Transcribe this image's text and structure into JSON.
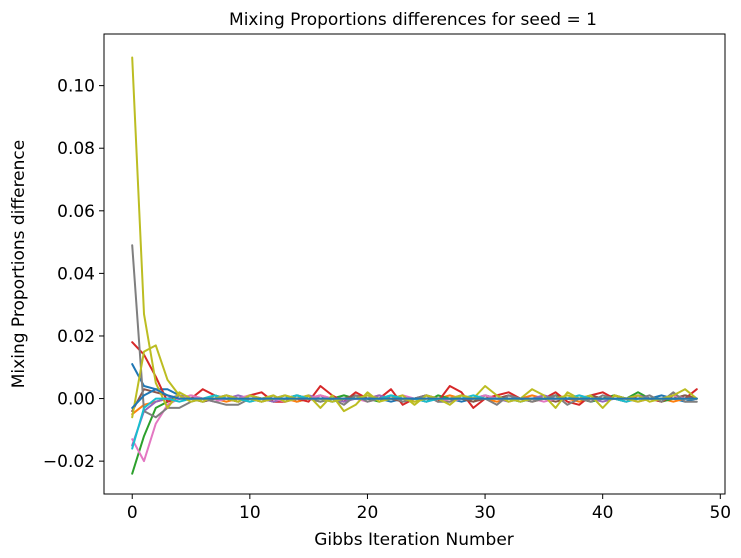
{
  "chart_data": {
    "type": "line",
    "title": "Mixing Proportions differences for seed = 1",
    "xlabel": "Gibbs Iteration Number",
    "ylabel": "Mixing Proportions difference",
    "xlim": [
      -2.4,
      50.4
    ],
    "ylim": [
      -0.0305,
      0.1165
    ],
    "xticks": [
      0,
      10,
      20,
      30,
      40,
      50
    ],
    "xtick_labels": [
      "0",
      "10",
      "20",
      "30",
      "40",
      "50"
    ],
    "yticks": [
      -0.02,
      0.0,
      0.02,
      0.04,
      0.06,
      0.08,
      0.1
    ],
    "ytick_labels": [
      "−0.02",
      "0.00",
      "0.02",
      "0.04",
      "0.06",
      "0.08",
      "0.10"
    ],
    "grid": false,
    "legend": "none",
    "x": [
      0,
      1,
      2,
      3,
      4,
      5,
      6,
      7,
      8,
      9,
      10,
      11,
      12,
      13,
      14,
      15,
      16,
      17,
      18,
      19,
      20,
      21,
      22,
      23,
      24,
      25,
      26,
      27,
      28,
      29,
      30,
      31,
      32,
      33,
      34,
      35,
      36,
      37,
      38,
      39,
      40,
      41,
      42,
      43,
      44,
      45,
      46,
      47,
      48
    ],
    "series": [
      {
        "color": "#1f77b4",
        "values": [
          0.011,
          0.004,
          0.003,
          0.003,
          0.001,
          0.0,
          -0.001,
          0.0,
          0.001,
          0.0,
          -0.001,
          0.0,
          0.0,
          0.001,
          -0.001,
          0.0,
          0.001,
          -0.001,
          0.0,
          0.0,
          0.001,
          0.0,
          -0.001,
          0.0,
          0.0,
          0.001,
          0.0,
          0.0,
          -0.001,
          0.0,
          0.001,
          0.0,
          0.0,
          -0.001,
          0.0,
          0.0,
          0.001,
          0.0,
          0.0,
          -0.001,
          0.0,
          0.001,
          0.0,
          0.0,
          0.0,
          0.001,
          0.0,
          -0.001,
          0.0
        ]
      },
      {
        "color": "#ff7f0e",
        "values": [
          -0.005,
          -0.002,
          -0.001,
          0.0,
          0.0,
          0.001,
          0.0,
          0.0,
          -0.001,
          0.0,
          0.001,
          0.0,
          0.0,
          0.0,
          -0.001,
          0.0,
          0.001,
          0.0,
          0.0,
          0.0,
          0.0,
          0.001,
          0.0,
          0.0,
          -0.001,
          0.0,
          0.0,
          0.001,
          0.0,
          0.0,
          0.0,
          -0.001,
          0.0,
          0.0,
          0.001,
          0.0,
          0.0,
          0.0,
          -0.001,
          0.0,
          0.0,
          0.001,
          0.0,
          0.0,
          0.0,
          0.0,
          -0.001,
          0.0,
          0.0
        ]
      },
      {
        "color": "#2ca02c",
        "values": [
          -0.024,
          -0.012,
          -0.003,
          -0.001,
          0.001,
          0.0,
          -0.001,
          0.001,
          0.0,
          -0.001,
          0.001,
          0.0,
          -0.001,
          0.0,
          0.001,
          0.0,
          -0.001,
          0.0,
          0.001,
          0.0,
          0.0,
          -0.001,
          0.001,
          0.0,
          0.0,
          -0.001,
          0.001,
          0.0,
          0.0,
          -0.001,
          0.001,
          0.0,
          0.0,
          0.0,
          -0.001,
          0.0,
          0.001,
          0.0,
          0.0,
          -0.001,
          0.0,
          0.001,
          0.0,
          0.002,
          0.0,
          -0.001,
          0.0,
          0.001,
          0.0
        ]
      },
      {
        "color": "#d62728",
        "values": [
          0.018,
          0.014,
          0.007,
          -0.001,
          0.0,
          0.0,
          0.003,
          0.001,
          0.0,
          -0.001,
          0.001,
          0.002,
          -0.001,
          -0.001,
          0.0,
          -0.001,
          0.004,
          0.001,
          -0.001,
          0.002,
          0.0,
          0.0,
          0.003,
          -0.002,
          0.0,
          0.001,
          -0.001,
          0.004,
          0.002,
          -0.003,
          0.0,
          0.001,
          0.002,
          0.0,
          -0.001,
          0.0,
          0.002,
          -0.001,
          -0.002,
          0.001,
          0.002,
          0.0,
          -0.001,
          0.001,
          0.0,
          -0.001,
          0.001,
          0.0,
          0.003
        ]
      },
      {
        "color": "#9467bd",
        "values": [
          -0.015,
          -0.004,
          -0.001,
          0.0,
          0.001,
          0.0,
          0.0,
          -0.001,
          0.0,
          0.001,
          0.0,
          0.0,
          -0.001,
          0.0,
          0.0,
          0.001,
          0.0,
          0.0,
          -0.001,
          0.0,
          0.0,
          0.001,
          0.0,
          0.0,
          0.0,
          -0.001,
          0.0,
          0.0,
          0.001,
          0.0,
          0.0,
          0.0,
          -0.001,
          0.0,
          0.0,
          0.001,
          0.0,
          0.0,
          0.0,
          0.0,
          -0.001,
          0.0,
          0.0,
          0.001,
          0.0,
          0.0,
          0.0,
          0.0,
          0.0
        ]
      },
      {
        "color": "#8c564b",
        "values": [
          -0.004,
          0.003,
          0.002,
          0.001,
          0.0,
          0.0,
          -0.001,
          0.0,
          0.001,
          0.0,
          0.0,
          -0.001,
          0.0,
          0.0,
          0.001,
          0.0,
          0.0,
          -0.001,
          0.0,
          0.001,
          0.0,
          0.0,
          0.0,
          -0.001,
          0.0,
          0.001,
          0.0,
          0.0,
          0.0,
          -0.001,
          0.0,
          0.0,
          0.001,
          0.0,
          0.0,
          0.0,
          -0.001,
          0.0,
          0.0,
          0.001,
          0.0,
          0.0,
          0.0,
          -0.001,
          0.0,
          0.0,
          0.0,
          0.001,
          0.0
        ]
      },
      {
        "color": "#e377c2",
        "values": [
          -0.013,
          -0.02,
          -0.008,
          -0.002,
          0.0,
          0.001,
          0.0,
          -0.001,
          0.0,
          0.0,
          0.001,
          0.0,
          0.0,
          -0.001,
          0.0,
          0.0,
          0.001,
          0.0,
          0.0,
          0.0,
          -0.001,
          0.0,
          0.0,
          0.001,
          0.0,
          0.0,
          0.0,
          -0.001,
          0.0,
          0.0,
          0.001,
          0.0,
          0.0,
          0.0,
          0.0,
          -0.001,
          0.0,
          0.0,
          0.001,
          0.0,
          0.0,
          0.0,
          0.0,
          -0.001,
          0.0,
          0.0,
          0.001,
          0.0,
          0.0
        ]
      },
      {
        "color": "#7f7f7f",
        "values": [
          0.049,
          -0.004,
          -0.006,
          -0.003,
          -0.003,
          -0.001,
          0.0,
          -0.001,
          -0.002,
          -0.002,
          0.0,
          -0.001,
          0.001,
          -0.001,
          0.001,
          0.0,
          -0.001,
          0.0,
          -0.002,
          0.001,
          -0.001,
          0.0,
          0.001,
          -0.001,
          0.0,
          0.001,
          -0.001,
          -0.001,
          0.001,
          0.0,
          0.0,
          -0.002,
          0.001,
          0.0,
          -0.001,
          0.0,
          0.001,
          -0.002,
          0.0,
          -0.001,
          0.001,
          0.0,
          -0.001,
          0.0,
          0.001,
          -0.001,
          0.002,
          -0.001,
          -0.001
        ]
      },
      {
        "color": "#bcbd22",
        "values": [
          0.109,
          0.027,
          0.005,
          -0.003,
          0.002,
          0.0,
          -0.001,
          0.001,
          0.0,
          -0.001,
          0.001,
          0.0,
          0.001,
          -0.001,
          0.0,
          0.001,
          -0.003,
          0.001,
          -0.004,
          -0.002,
          0.002,
          -0.001,
          0.0,
          0.001,
          -0.002,
          0.001,
          0.0,
          -0.002,
          0.001,
          0.0,
          0.004,
          0.001,
          -0.001,
          0.0,
          0.003,
          0.001,
          -0.003,
          0.002,
          0.0,
          0.001,
          -0.003,
          0.001,
          0.0,
          0.001,
          -0.001,
          0.0,
          0.001,
          0.003,
          0.0
        ]
      },
      {
        "color": "#17becf",
        "values": [
          -0.016,
          -0.003,
          0.0,
          0.0,
          -0.001,
          0.0,
          0.0,
          0.001,
          0.0,
          0.0,
          -0.001,
          0.0,
          0.0,
          0.0,
          0.001,
          0.0,
          0.0,
          -0.001,
          0.0,
          0.0,
          0.0,
          0.0,
          0.001,
          0.0,
          0.0,
          -0.001,
          0.0,
          0.0,
          0.0,
          0.001,
          0.0,
          0.0,
          0.0,
          -0.001,
          0.0,
          0.0,
          0.0,
          0.0,
          0.001,
          0.0,
          0.0,
          0.0,
          -0.001,
          0.0,
          0.0,
          0.0,
          0.0,
          0.0,
          0.0
        ]
      },
      {
        "color": "#bcbd22",
        "values": [
          -0.006,
          0.015,
          0.017,
          0.006,
          0.001,
          -0.001,
          0.0,
          0.0,
          0.001,
          0.0,
          0.0,
          -0.001,
          0.0,
          0.001,
          0.0,
          0.0,
          0.0,
          -0.001,
          0.0,
          0.0,
          0.001,
          0.0,
          0.0,
          0.0,
          -0.001,
          0.0,
          0.0,
          0.0,
          0.001,
          0.0,
          0.0,
          0.0,
          0.0,
          -0.001,
          0.0,
          0.0,
          0.0,
          0.001,
          0.0,
          0.0,
          0.0,
          0.0,
          0.0,
          -0.001,
          0.0,
          0.0,
          0.0,
          0.0,
          0.0
        ]
      },
      {
        "color": "#1f77b4",
        "values": [
          -0.003,
          0.001,
          0.003,
          0.001,
          0.0,
          0.0,
          0.0,
          0.0,
          0.0,
          0.0,
          0.0,
          0.0,
          0.0,
          0.0,
          0.0,
          0.0,
          0.0,
          0.0,
          0.0,
          0.0,
          0.0,
          0.0,
          0.0,
          0.0,
          0.0,
          0.0,
          0.0,
          0.0,
          0.0,
          0.0,
          0.0,
          0.0,
          0.0,
          0.0,
          0.0,
          0.0,
          0.0,
          0.0,
          0.0,
          0.0,
          0.0,
          0.0,
          0.0,
          0.0,
          0.0,
          0.0,
          0.0,
          0.0,
          0.0
        ]
      }
    ]
  }
}
